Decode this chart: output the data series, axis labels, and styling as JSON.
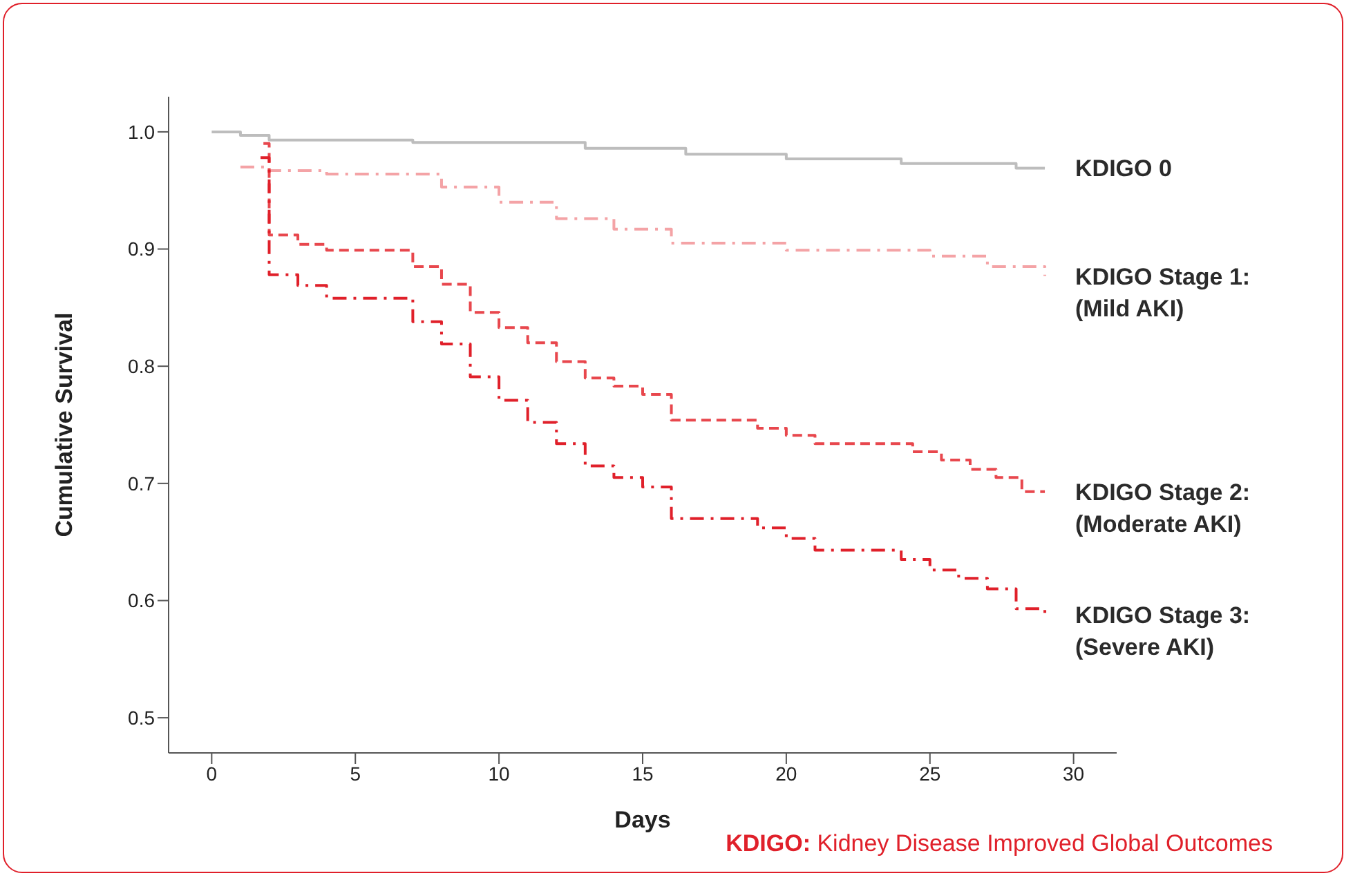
{
  "chart_data": {
    "type": "step",
    "xlabel": "Days",
    "ylabel": "Cumulative Survival",
    "xlim": [
      -1.5,
      31.5
    ],
    "xticks": [
      0,
      5,
      10,
      15,
      20,
      25,
      30
    ],
    "ylim": [
      0.47,
      1.03
    ],
    "yticks": [
      {
        "value": 0.5,
        "label": "0.5"
      },
      {
        "value": 0.6,
        "label": "0.6"
      },
      {
        "value": 0.7,
        "label": "0.7"
      },
      {
        "value": 0.8,
        "label": "0.8"
      },
      {
        "value": 0.9,
        "label": "0.9"
      },
      {
        "value": 1,
        "label": "1.0"
      }
    ],
    "grid": false,
    "legend": false,
    "marker": "none",
    "series": [
      {
        "name": "KDIGO 0",
        "color": "#bdbdbd",
        "line_style": "solid",
        "x": [
          0,
          1,
          2,
          7,
          13,
          16.5,
          20,
          24,
          28,
          29
        ],
        "values": [
          1.0,
          0.997,
          0.993,
          0.991,
          0.986,
          0.981,
          0.977,
          0.973,
          0.969,
          0.969
        ]
      },
      {
        "name": "KDIGO Stage 1:\n(Mild AKI)",
        "color": "#f4a3a6",
        "line_style": "dashdot",
        "x": [
          1,
          2,
          4,
          8,
          10,
          12,
          14,
          16,
          20,
          25,
          27,
          29
        ],
        "values": [
          0.97,
          0.967,
          0.964,
          0.953,
          0.94,
          0.926,
          0.917,
          0.905,
          0.899,
          0.894,
          0.885,
          0.877
        ]
      },
      {
        "name": "KDIGO Stage 2:\n(Moderate AKI)",
        "color": "#e8474d",
        "line_style": "dashed",
        "x": [
          1.8,
          2,
          3,
          4,
          7,
          8,
          9,
          10,
          11,
          12,
          13,
          14,
          15,
          16,
          19,
          20,
          21,
          24.4,
          25.4,
          26.4,
          27.3,
          28.2,
          29
        ],
        "values": [
          0.99,
          0.912,
          0.904,
          0.899,
          0.885,
          0.87,
          0.846,
          0.833,
          0.82,
          0.804,
          0.79,
          0.783,
          0.776,
          0.754,
          0.747,
          0.741,
          0.734,
          0.727,
          0.72,
          0.712,
          0.705,
          0.693,
          0.693
        ]
      },
      {
        "name": "KDIGO Stage 3:\n(Severe AKI)",
        "color": "#e0202a",
        "line_style": "dashdot",
        "x": [
          1.7,
          2,
          3,
          4,
          7,
          8,
          9,
          10,
          11,
          12,
          13,
          14,
          15,
          16,
          19,
          20,
          21,
          24,
          25,
          26,
          27,
          28,
          29
        ],
        "values": [
          0.978,
          0.878,
          0.869,
          0.858,
          0.838,
          0.819,
          0.791,
          0.771,
          0.752,
          0.734,
          0.715,
          0.705,
          0.697,
          0.67,
          0.662,
          0.653,
          0.643,
          0.635,
          0.626,
          0.619,
          0.61,
          0.593,
          0.588
        ]
      }
    ],
    "annotations": [
      "KDIGO: Kidney Disease Improved Global Outcomes"
    ]
  }
}
